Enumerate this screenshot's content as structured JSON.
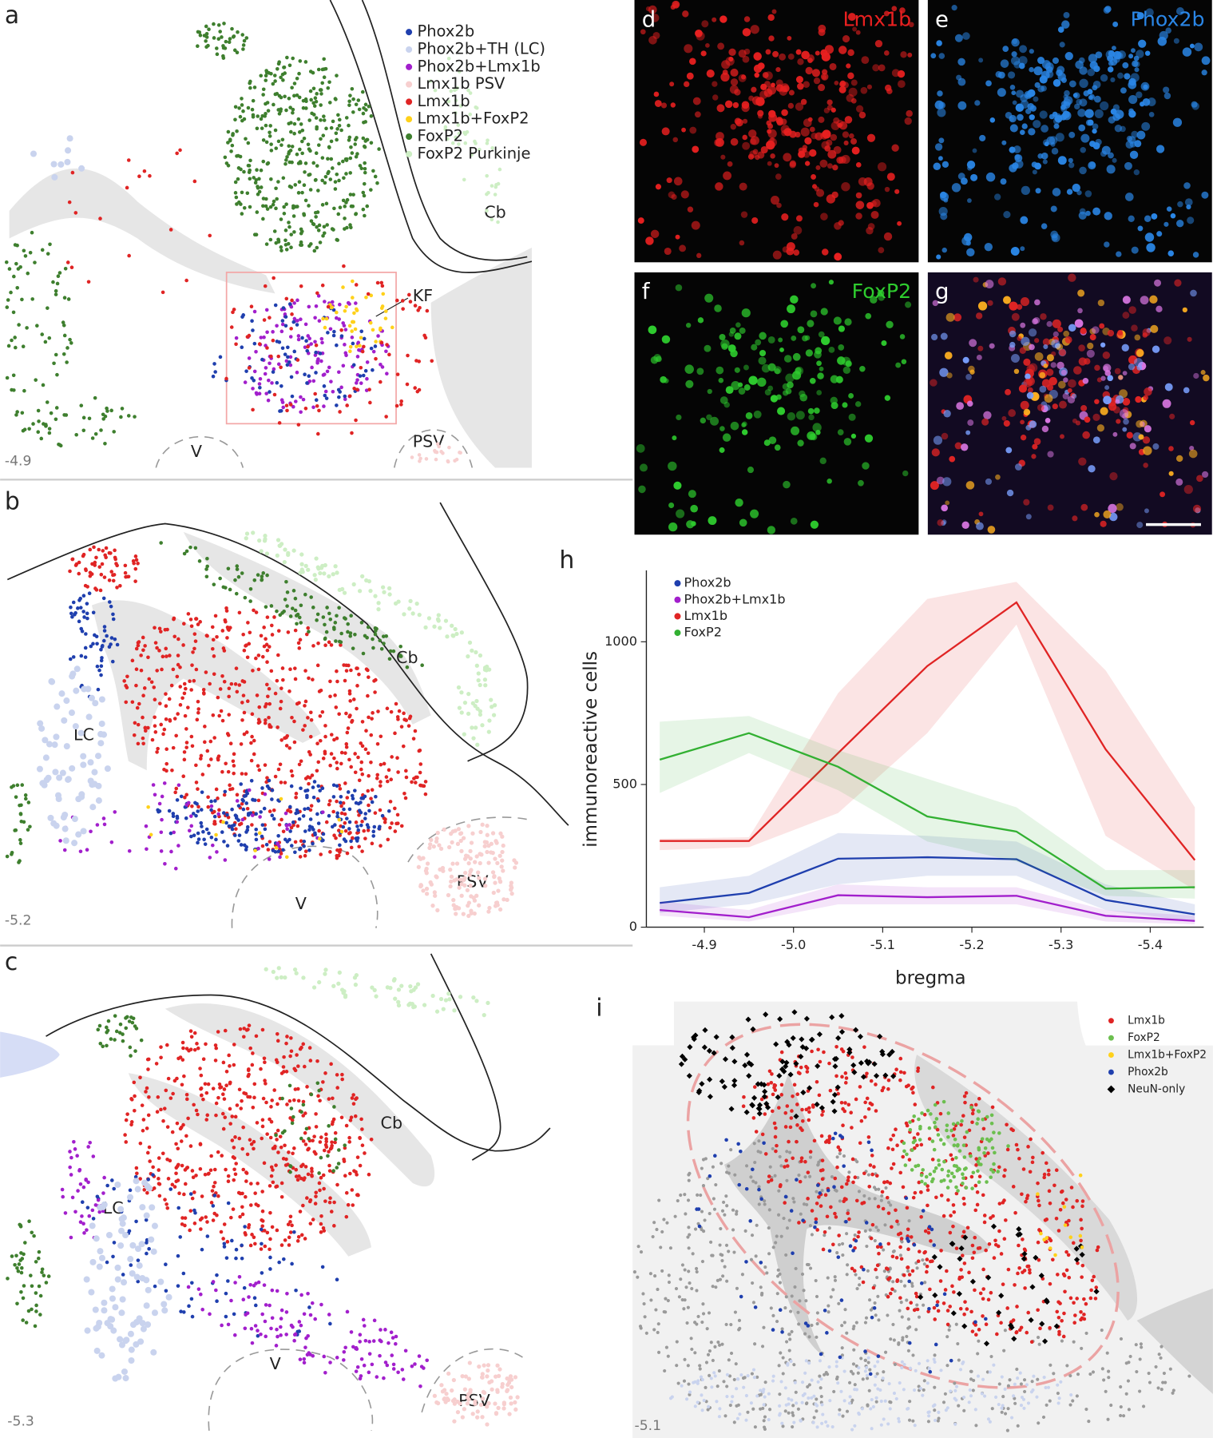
{
  "panel_a": {
    "letter": "a",
    "bregma": "-4.9",
    "labels": [
      "Cb",
      "KF",
      "V",
      "PSV"
    ],
    "legend": [
      {
        "name": "Phox2b",
        "color": "#1f3fae"
      },
      {
        "name": "Phox2b+TH (LC)",
        "color": "#c9d3ee"
      },
      {
        "name": "Phox2b+Lmx1b",
        "color": "#a21fcc"
      },
      {
        "name": "Lmx1b PSV",
        "color": "#f7cfcf"
      },
      {
        "name": "Lmx1b",
        "color": "#e02424"
      },
      {
        "name": "Lmx1b+FoxP2",
        "color": "#ffd11a"
      },
      {
        "name": "FoxP2",
        "color": "#3e7f2e"
      },
      {
        "name": "FoxP2 Purkinje",
        "color": "#cdeec4"
      }
    ]
  },
  "panel_b": {
    "letter": "b",
    "bregma": "-5.2",
    "labels": [
      "Cb",
      "LC",
      "V",
      "PSV"
    ]
  },
  "panel_c": {
    "letter": "c",
    "bregma": "-5.3",
    "labels": [
      "Cb",
      "LC",
      "V",
      "PSV"
    ]
  },
  "images": [
    {
      "letter": "d",
      "stain": "Lmx1b",
      "color": "#e82020"
    },
    {
      "letter": "e",
      "stain": "Phox2b",
      "color": "#2a86e6"
    },
    {
      "letter": "f",
      "stain": "FoxP2",
      "color": "#2ecc2e"
    },
    {
      "letter": "g"
    }
  ],
  "chart_data": {
    "type": "line",
    "panel_letter": "h",
    "x_label": "bregma",
    "y_label": "immunoreactive cells",
    "x": [
      -4.85,
      -4.95,
      -5.05,
      -5.15,
      -5.25,
      -5.35,
      -5.45
    ],
    "xlim": [
      -4.835,
      -5.46
    ],
    "xticks": [
      -4.9,
      {
        "value": -5.0,
        "label": "-5.0"
      },
      -5.1,
      -5.2,
      -5.3,
      -5.4
    ],
    "ylim": [
      0,
      1250
    ],
    "yticks": [
      0,
      500,
      1000
    ],
    "series": [
      {
        "name": "Phox2b",
        "color": "#1f3fae",
        "values": [
          85,
          120,
          240,
          245,
          238,
          95,
          45
        ],
        "upper": [
          140,
          180,
          330,
          320,
          300,
          150,
          80
        ],
        "lower": [
          50,
          80,
          150,
          180,
          180,
          60,
          20
        ]
      },
      {
        "name": "Phox2b+Lmx1b",
        "color": "#a21fcc",
        "values": [
          60,
          35,
          112,
          105,
          110,
          40,
          22
        ],
        "upper": [
          90,
          60,
          150,
          140,
          140,
          60,
          40
        ],
        "lower": [
          40,
          20,
          80,
          80,
          80,
          20,
          10
        ]
      },
      {
        "name": "Lmx1b",
        "color": "#e02424",
        "values": [
          302,
          302,
          610,
          915,
          1138,
          623,
          235
        ],
        "upper": [
          310,
          315,
          820,
          1150,
          1210,
          900,
          420
        ],
        "lower": [
          270,
          280,
          400,
          680,
          1060,
          320,
          130
        ]
      },
      {
        "name": "FoxP2",
        "color": "#32b032",
        "values": [
          587,
          680,
          562,
          388,
          335,
          135,
          140
        ],
        "upper": [
          720,
          740,
          620,
          520,
          420,
          200,
          200
        ],
        "lower": [
          470,
          610,
          480,
          300,
          230,
          110,
          100
        ]
      }
    ]
  },
  "panel_i": {
    "letter": "i",
    "bregma": "-5.1",
    "legend": [
      {
        "name": "Lmx1b",
        "color": "#e02424"
      },
      {
        "name": "FoxP2",
        "color": "#6cbf4f"
      },
      {
        "name": "Lmx1b+FoxP2",
        "color": "#ffd11a"
      },
      {
        "name": "Phox2b",
        "color": "#1f3fae"
      },
      {
        "name": "NeuN-only",
        "color": "#000000"
      }
    ]
  }
}
